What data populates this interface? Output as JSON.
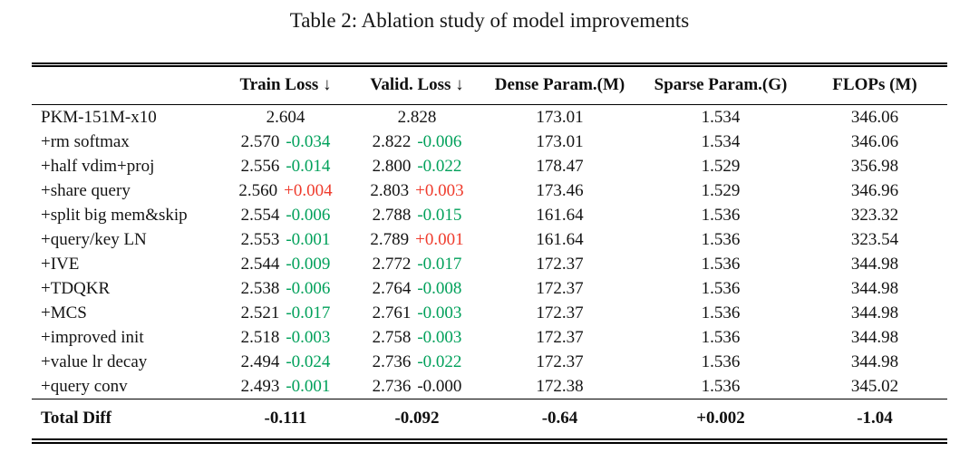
{
  "title": "Table 2: Ablation study of model improvements",
  "colors": {
    "improvement_green": "#00a05a",
    "regression_red": "#ef3b2c",
    "neutral_black": "#141414"
  },
  "table": {
    "headers": {
      "model": "",
      "train_loss": "Train Loss ↓",
      "valid_loss": "Valid. Loss ↓",
      "dense_param": "Dense Param.(M)",
      "sparse_param": "Sparse Param.(G)",
      "flops": "FLOPs (M)"
    },
    "rows": [
      {
        "label": "PKM-151M-x10",
        "train": "2.604",
        "train_diff": null,
        "train_diff_type": null,
        "valid": "2.828",
        "valid_diff": null,
        "valid_diff_type": null,
        "dense": "173.01",
        "sparse": "1.534",
        "flops": "346.06"
      },
      {
        "label": "+rm softmax",
        "train": "2.570",
        "train_diff": "-0.034",
        "train_diff_type": "better",
        "valid": "2.822",
        "valid_diff": "-0.006",
        "valid_diff_type": "better",
        "dense": "173.01",
        "sparse": "1.534",
        "flops": "346.06"
      },
      {
        "label": "+half vdim+proj",
        "train": "2.556",
        "train_diff": "-0.014",
        "train_diff_type": "better",
        "valid": "2.800",
        "valid_diff": "-0.022",
        "valid_diff_type": "better",
        "dense": "178.47",
        "sparse": "1.529",
        "flops": "356.98"
      },
      {
        "label": "+share query",
        "train": "2.560",
        "train_diff": "+0.004",
        "train_diff_type": "worse",
        "valid": "2.803",
        "valid_diff": "+0.003",
        "valid_diff_type": "worse",
        "dense": "173.46",
        "sparse": "1.529",
        "flops": "346.96"
      },
      {
        "label": "+split big mem&skip",
        "train": "2.554",
        "train_diff": "-0.006",
        "train_diff_type": "better",
        "valid": "2.788",
        "valid_diff": "-0.015",
        "valid_diff_type": "better",
        "dense": "161.64",
        "sparse": "1.536",
        "flops": "323.32"
      },
      {
        "label": "+query/key LN",
        "train": "2.553",
        "train_diff": "-0.001",
        "train_diff_type": "better",
        "valid": "2.789",
        "valid_diff": "+0.001",
        "valid_diff_type": "worse",
        "dense": "161.64",
        "sparse": "1.536",
        "flops": "323.54"
      },
      {
        "label": "+IVE",
        "train": "2.544",
        "train_diff": "-0.009",
        "train_diff_type": "better",
        "valid": "2.772",
        "valid_diff": "-0.017",
        "valid_diff_type": "better",
        "dense": "172.37",
        "sparse": "1.536",
        "flops": "344.98"
      },
      {
        "label": "+TDQKR",
        "train": "2.538",
        "train_diff": "-0.006",
        "train_diff_type": "better",
        "valid": "2.764",
        "valid_diff": "-0.008",
        "valid_diff_type": "better",
        "dense": "172.37",
        "sparse": "1.536",
        "flops": "344.98"
      },
      {
        "label": "+MCS",
        "train": "2.521",
        "train_diff": "-0.017",
        "train_diff_type": "better",
        "valid": "2.761",
        "valid_diff": "-0.003",
        "valid_diff_type": "better",
        "dense": "172.37",
        "sparse": "1.536",
        "flops": "344.98"
      },
      {
        "label": "+improved init",
        "train": "2.518",
        "train_diff": "-0.003",
        "train_diff_type": "better",
        "valid": "2.758",
        "valid_diff": "-0.003",
        "valid_diff_type": "better",
        "dense": "172.37",
        "sparse": "1.536",
        "flops": "344.98"
      },
      {
        "label": "+value lr decay",
        "train": "2.494",
        "train_diff": "-0.024",
        "train_diff_type": "better",
        "valid": "2.736",
        "valid_diff": "-0.022",
        "valid_diff_type": "better",
        "dense": "172.37",
        "sparse": "1.536",
        "flops": "344.98"
      },
      {
        "label": "+query conv",
        "train": "2.493",
        "train_diff": "-0.001",
        "train_diff_type": "better",
        "valid": "2.736",
        "valid_diff": "-0.000",
        "valid_diff_type": "neutral",
        "dense": "172.38",
        "sparse": "1.536",
        "flops": "345.02"
      }
    ],
    "total_row": {
      "label": "Total Diff",
      "train": "-0.111",
      "valid": "-0.092",
      "dense": "-0.64",
      "sparse": "+0.002",
      "flops": "-1.04"
    }
  }
}
